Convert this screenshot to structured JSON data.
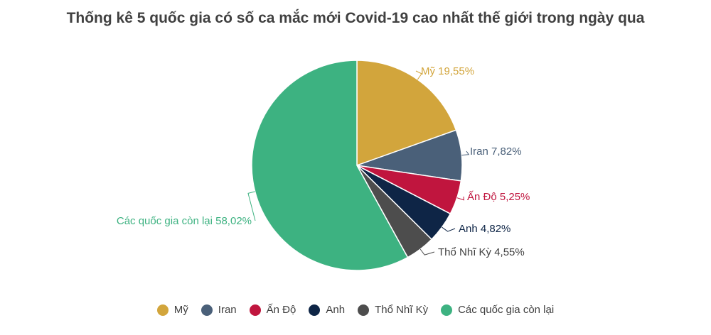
{
  "chart_data": {
    "type": "pie",
    "title": "Thống kê 5 quốc gia có số ca mắc  mới Covid-19 cao nhất thế giới trong ngày qua",
    "start_angle_deg": 0,
    "direction": "clockwise",
    "legend_position": "bottom",
    "slices": [
      {
        "name": "Mỹ",
        "value": 19.55,
        "label": "Mỹ 19,55%",
        "color": "#D2A53C"
      },
      {
        "name": "Iran",
        "value": 7.82,
        "label": "Iran 7,82%",
        "color": "#4A6079"
      },
      {
        "name": "Ấn Độ",
        "value": 5.25,
        "label": "Ấn Độ 5,25%",
        "color": "#C0153E"
      },
      {
        "name": "Anh",
        "value": 4.82,
        "label": "Anh 4,82%",
        "color": "#0E2546"
      },
      {
        "name": "Thổ Nhĩ Kỳ",
        "value": 4.55,
        "label": "Thổ Nhĩ Kỳ 4,55%",
        "color": "#4D4D4D"
      },
      {
        "name": "Các quốc gia còn lại",
        "value": 58.02,
        "label": "Các quốc gia còn lại 58,02%",
        "color": "#3DB281"
      }
    ]
  }
}
